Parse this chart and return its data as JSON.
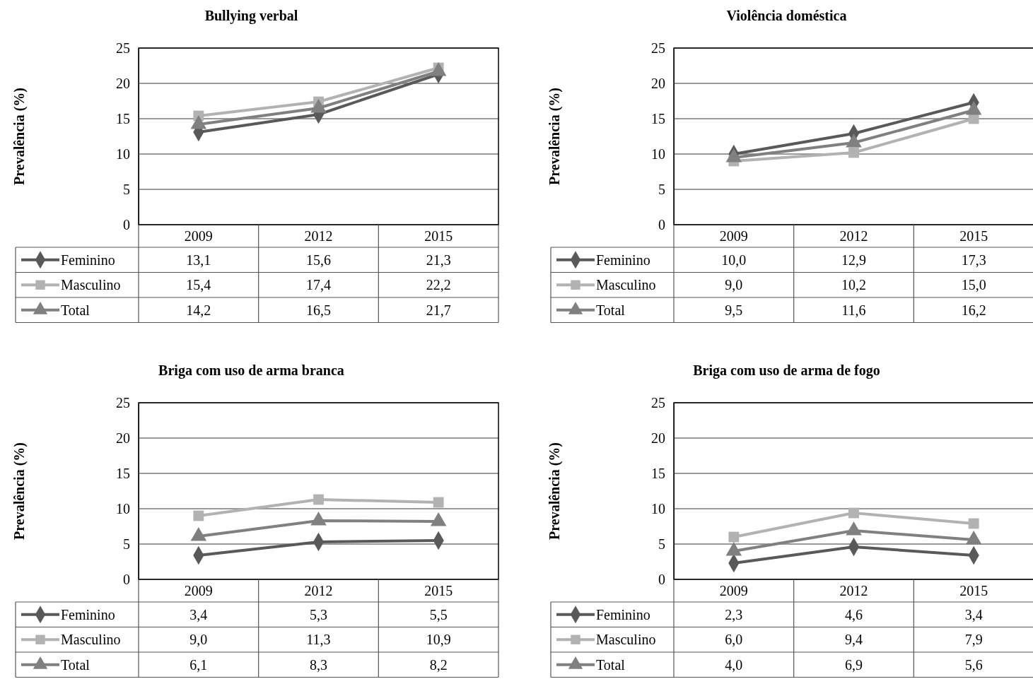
{
  "chart_data": [
    {
      "type": "line",
      "title": "Bullying verbal",
      "ylabel": "Prevalência (%)",
      "categories": [
        "2009",
        "2012",
        "2015"
      ],
      "ylim": [
        0,
        25
      ],
      "yticks": [
        0,
        5,
        10,
        15,
        20,
        25
      ],
      "grid": "y",
      "legend": "bottom",
      "series": [
        {
          "name": "Feminino",
          "color": "#595959",
          "marker": "diamond",
          "values": [
            13.1,
            15.6,
            21.3
          ],
          "value_labels": [
            "13,1",
            "15,6",
            "21,3"
          ]
        },
        {
          "name": "Masculino",
          "color": "#b2b2b2",
          "marker": "square",
          "values": [
            15.4,
            17.4,
            22.2
          ],
          "value_labels": [
            "15,4",
            "17,4",
            "22,2"
          ]
        },
        {
          "name": "Total",
          "color": "#808080",
          "marker": "triangle",
          "values": [
            14.2,
            16.5,
            21.7
          ],
          "value_labels": [
            "14,2",
            "16,5",
            "21,7"
          ]
        }
      ]
    },
    {
      "type": "line",
      "title": "Violência doméstica",
      "ylabel": "Prevalência (%)",
      "categories": [
        "2009",
        "2012",
        "2015"
      ],
      "ylim": [
        0,
        25
      ],
      "yticks": [
        0,
        5,
        10,
        15,
        20,
        25
      ],
      "grid": "y",
      "legend": "bottom",
      "series": [
        {
          "name": "Feminino",
          "color": "#595959",
          "marker": "diamond",
          "values": [
            10.0,
            12.9,
            17.3
          ],
          "value_labels": [
            "10,0",
            "12,9",
            "17,3"
          ]
        },
        {
          "name": "Masculino",
          "color": "#b2b2b2",
          "marker": "square",
          "values": [
            9.0,
            10.2,
            15.0
          ],
          "value_labels": [
            "9,0",
            "10,2",
            "15,0"
          ]
        },
        {
          "name": "Total",
          "color": "#808080",
          "marker": "triangle",
          "values": [
            9.5,
            11.6,
            16.2
          ],
          "value_labels": [
            "9,5",
            "11,6",
            "16,2"
          ]
        }
      ]
    },
    {
      "type": "line",
      "title": "Briga com uso de arma branca",
      "ylabel": "Prevalência (%)",
      "categories": [
        "2009",
        "2012",
        "2015"
      ],
      "ylim": [
        0,
        25
      ],
      "yticks": [
        0,
        5,
        10,
        15,
        20,
        25
      ],
      "grid": "y",
      "legend": "bottom",
      "series": [
        {
          "name": "Feminino",
          "color": "#595959",
          "marker": "diamond",
          "values": [
            3.4,
            5.3,
            5.5
          ],
          "value_labels": [
            "3,4",
            "5,3",
            "5,5"
          ]
        },
        {
          "name": "Masculino",
          "color": "#b2b2b2",
          "marker": "square",
          "values": [
            9.0,
            11.3,
            10.9
          ],
          "value_labels": [
            "9,0",
            "11,3",
            "10,9"
          ]
        },
        {
          "name": "Total",
          "color": "#808080",
          "marker": "triangle",
          "values": [
            6.1,
            8.3,
            8.2
          ],
          "value_labels": [
            "6,1",
            "8,3",
            "8,2"
          ]
        }
      ]
    },
    {
      "type": "line",
      "title": "Briga com uso de arma de fogo",
      "ylabel": "Prevalência (%)",
      "categories": [
        "2009",
        "2012",
        "2015"
      ],
      "ylim": [
        0,
        25
      ],
      "yticks": [
        0,
        5,
        10,
        15,
        20,
        25
      ],
      "grid": "y",
      "legend": "bottom",
      "series": [
        {
          "name": "Feminino",
          "color": "#595959",
          "marker": "diamond",
          "values": [
            2.3,
            4.6,
            3.4
          ],
          "value_labels": [
            "2,3",
            "4,6",
            "3,4"
          ]
        },
        {
          "name": "Masculino",
          "color": "#b2b2b2",
          "marker": "square",
          "values": [
            6.0,
            9.4,
            7.9
          ],
          "value_labels": [
            "6,0",
            "9,4",
            "7,9"
          ]
        },
        {
          "name": "Total",
          "color": "#808080",
          "marker": "triangle",
          "values": [
            4.0,
            6.9,
            5.6
          ],
          "value_labels": [
            "4,0",
            "6,9",
            "5,6"
          ]
        }
      ]
    }
  ]
}
